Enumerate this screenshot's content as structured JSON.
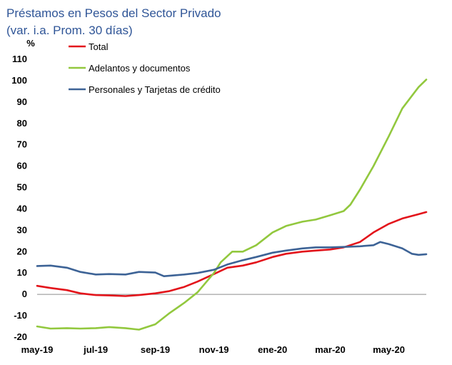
{
  "chart_data": {
    "type": "line",
    "title": "Préstamos en Pesos del Sector Privado",
    "subtitle": "(var. i.a. Prom. 30 días)",
    "ylabel": "%",
    "xlabel": "",
    "ylim": [
      -20,
      110
    ],
    "yticks": [
      -20,
      -10,
      0,
      10,
      20,
      30,
      40,
      50,
      60,
      70,
      80,
      90,
      100,
      110
    ],
    "xlim": [
      "2019-05-01",
      "2020-06-09"
    ],
    "xticks": [
      {
        "date": "2019-05-01",
        "label": "may-19"
      },
      {
        "date": "2019-07-01",
        "label": "jul-19"
      },
      {
        "date": "2019-09-01",
        "label": "sep-19"
      },
      {
        "date": "2019-11-01",
        "label": "nov-19"
      },
      {
        "date": "2020-01-01",
        "label": "ene-20"
      },
      {
        "date": "2020-03-01",
        "label": "mar-20"
      },
      {
        "date": "2020-05-01",
        "label": "may-20"
      }
    ],
    "legend_position": "top-left",
    "grid": false,
    "series": [
      {
        "name": "Total",
        "color": "#e3141b",
        "points": [
          [
            "2019-05-01",
            4
          ],
          [
            "2019-05-15",
            3
          ],
          [
            "2019-06-01",
            2
          ],
          [
            "2019-06-15",
            0.5
          ],
          [
            "2019-07-01",
            -0.3
          ],
          [
            "2019-07-15",
            -0.5
          ],
          [
            "2019-08-01",
            -0.8
          ],
          [
            "2019-08-15",
            -0.3
          ],
          [
            "2019-09-01",
            0.5
          ],
          [
            "2019-09-15",
            1.5
          ],
          [
            "2019-10-01",
            3.5
          ],
          [
            "2019-10-15",
            6
          ],
          [
            "2019-11-01",
            9.5
          ],
          [
            "2019-11-15",
            12.5
          ],
          [
            "2019-12-01",
            13.5
          ],
          [
            "2019-12-15",
            15
          ],
          [
            "2020-01-01",
            17.5
          ],
          [
            "2020-01-15",
            19
          ],
          [
            "2020-02-01",
            20
          ],
          [
            "2020-02-15",
            20.5
          ],
          [
            "2020-03-01",
            21
          ],
          [
            "2020-03-15",
            22
          ],
          [
            "2020-04-01",
            24.5
          ],
          [
            "2020-04-15",
            29
          ],
          [
            "2020-05-01",
            33
          ],
          [
            "2020-05-15",
            35.5
          ],
          [
            "2020-06-01",
            37.5
          ],
          [
            "2020-06-09",
            38.5
          ]
        ]
      },
      {
        "name": "Adelantos y documentos",
        "color": "#92c83e",
        "points": [
          [
            "2019-05-01",
            -15
          ],
          [
            "2019-05-15",
            -16
          ],
          [
            "2019-06-01",
            -15.8
          ],
          [
            "2019-06-15",
            -16
          ],
          [
            "2019-07-01",
            -15.8
          ],
          [
            "2019-07-15",
            -15.3
          ],
          [
            "2019-08-01",
            -15.8
          ],
          [
            "2019-08-15",
            -16.5
          ],
          [
            "2019-09-01",
            -14
          ],
          [
            "2019-09-15",
            -9
          ],
          [
            "2019-10-01",
            -4
          ],
          [
            "2019-10-15",
            1
          ],
          [
            "2019-11-01",
            10
          ],
          [
            "2019-11-08",
            15
          ],
          [
            "2019-11-20",
            20
          ],
          [
            "2019-12-01",
            20
          ],
          [
            "2019-12-15",
            23
          ],
          [
            "2020-01-01",
            29
          ],
          [
            "2020-01-15",
            32
          ],
          [
            "2020-02-01",
            34
          ],
          [
            "2020-02-15",
            35
          ],
          [
            "2020-03-01",
            37
          ],
          [
            "2020-03-15",
            39
          ],
          [
            "2020-03-22",
            42
          ],
          [
            "2020-04-01",
            49
          ],
          [
            "2020-04-15",
            60
          ],
          [
            "2020-05-01",
            74
          ],
          [
            "2020-05-15",
            87
          ],
          [
            "2020-06-01",
            97
          ],
          [
            "2020-06-09",
            100.5
          ]
        ]
      },
      {
        "name": "Personales y Tarjetas de crédito",
        "color": "#3d6396",
        "points": [
          [
            "2019-05-01",
            13.3
          ],
          [
            "2019-05-15",
            13.5
          ],
          [
            "2019-06-01",
            12.5
          ],
          [
            "2019-06-15",
            10.5
          ],
          [
            "2019-07-01",
            9.3
          ],
          [
            "2019-07-15",
            9.5
          ],
          [
            "2019-08-01",
            9.3
          ],
          [
            "2019-08-15",
            10.5
          ],
          [
            "2019-09-01",
            10.2
          ],
          [
            "2019-09-10",
            8.5
          ],
          [
            "2019-10-01",
            9.3
          ],
          [
            "2019-10-15",
            10
          ],
          [
            "2019-11-01",
            11.5
          ],
          [
            "2019-11-15",
            14
          ],
          [
            "2019-12-01",
            16
          ],
          [
            "2019-12-15",
            17.5
          ],
          [
            "2020-01-01",
            19.5
          ],
          [
            "2020-01-15",
            20.5
          ],
          [
            "2020-02-01",
            21.5
          ],
          [
            "2020-02-15",
            22
          ],
          [
            "2020-03-01",
            22
          ],
          [
            "2020-03-15",
            22.2
          ],
          [
            "2020-04-01",
            22.5
          ],
          [
            "2020-04-15",
            23
          ],
          [
            "2020-04-22",
            24.5
          ],
          [
            "2020-05-01",
            23.5
          ],
          [
            "2020-05-15",
            21.5
          ],
          [
            "2020-05-25",
            19
          ],
          [
            "2020-06-01",
            18.5
          ],
          [
            "2020-06-09",
            18.8
          ]
        ]
      }
    ]
  }
}
